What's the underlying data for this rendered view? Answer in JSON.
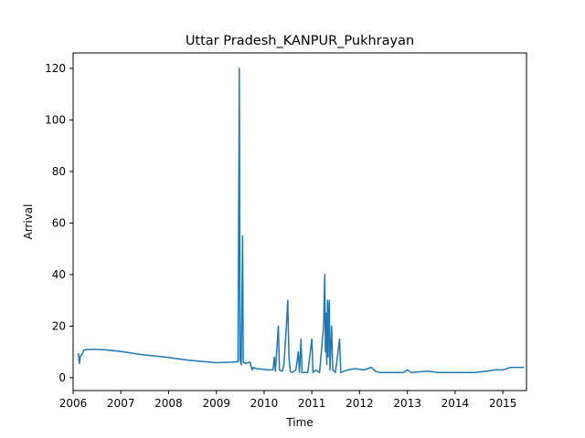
{
  "chart_data": {
    "type": "line",
    "title": "Uttar Pradesh_KANPUR_Pukhrayan",
    "xlabel": "Time",
    "ylabel": "Arrival",
    "xlim": [
      "2006-01-01",
      "2015-07-01"
    ],
    "ylim": [
      -5,
      126
    ],
    "x_ticks": [
      "2006",
      "2007",
      "2008",
      "2009",
      "2010",
      "2011",
      "2012",
      "2013",
      "2014",
      "2015"
    ],
    "y_ticks": [
      0,
      20,
      40,
      60,
      80,
      100,
      120
    ],
    "grid": false,
    "legend": "none",
    "colors": {
      "series": "#1f77b4"
    },
    "series": [
      {
        "points": [
          [
            "2006-02-10",
            9.5
          ],
          [
            "2006-02-18",
            5.5
          ],
          [
            "2006-02-26",
            8.5
          ],
          [
            "2006-03-10",
            9.0
          ],
          [
            "2006-03-25",
            10.8
          ],
          [
            "2006-06-01",
            11.0
          ],
          [
            "2006-09-01",
            10.8
          ],
          [
            "2007-01-01",
            10.2
          ],
          [
            "2007-06-01",
            9.0
          ],
          [
            "2008-01-01",
            7.8
          ],
          [
            "2008-06-01",
            6.8
          ],
          [
            "2009-01-01",
            5.8
          ],
          [
            "2009-05-01",
            6.0
          ],
          [
            "2009-06-15",
            6.2
          ],
          [
            "2009-06-25",
            120.0
          ],
          [
            "2009-07-01",
            7.0
          ],
          [
            "2009-07-10",
            5.0
          ],
          [
            "2009-07-20",
            55.0
          ],
          [
            "2009-07-25",
            6.0
          ],
          [
            "2009-08-10",
            5.5
          ],
          [
            "2009-09-15",
            6.0
          ],
          [
            "2009-10-01",
            3.0
          ],
          [
            "2009-10-10",
            4.0
          ],
          [
            "2009-11-01",
            3.5
          ],
          [
            "2010-01-01",
            3.2
          ],
          [
            "2010-02-01",
            3.0
          ],
          [
            "2010-03-10",
            3.0
          ],
          [
            "2010-03-20",
            8.0
          ],
          [
            "2010-03-28",
            2.5
          ],
          [
            "2010-04-20",
            20.0
          ],
          [
            "2010-04-28",
            3.0
          ],
          [
            "2010-05-20",
            2.5
          ],
          [
            "2010-06-01",
            5.0
          ],
          [
            "2010-06-20",
            20.0
          ],
          [
            "2010-07-01",
            30.0
          ],
          [
            "2010-07-10",
            8.0
          ],
          [
            "2010-07-20",
            2.5
          ],
          [
            "2010-08-01",
            2.0
          ],
          [
            "2010-09-01",
            3.0
          ],
          [
            "2010-09-20",
            10.0
          ],
          [
            "2010-09-28",
            2.0
          ],
          [
            "2010-10-10",
            15.0
          ],
          [
            "2010-10-18",
            2.0
          ],
          [
            "2010-12-01",
            2.0
          ],
          [
            "2011-01-01",
            15.0
          ],
          [
            "2011-01-10",
            2.0
          ],
          [
            "2011-02-01",
            3.0
          ],
          [
            "2011-03-01",
            2.0
          ],
          [
            "2011-04-01",
            20.0
          ],
          [
            "2011-04-10",
            40.0
          ],
          [
            "2011-04-15",
            10.0
          ],
          [
            "2011-04-20",
            25.0
          ],
          [
            "2011-04-25",
            5.0
          ],
          [
            "2011-05-01",
            30.0
          ],
          [
            "2011-05-06",
            8.0
          ],
          [
            "2011-05-10",
            25.0
          ],
          [
            "2011-05-15",
            30.0
          ],
          [
            "2011-05-20",
            3.0
          ],
          [
            "2011-06-01",
            20.0
          ],
          [
            "2011-06-10",
            3.0
          ],
          [
            "2011-07-01",
            2.0
          ],
          [
            "2011-08-01",
            15.0
          ],
          [
            "2011-08-10",
            2.0
          ],
          [
            "2011-10-01",
            3.0
          ],
          [
            "2011-12-01",
            3.5
          ],
          [
            "2012-02-01",
            3.0
          ],
          [
            "2012-04-01",
            4.0
          ],
          [
            "2012-05-01",
            2.5
          ],
          [
            "2012-06-01",
            2.0
          ],
          [
            "2012-09-01",
            2.0
          ],
          [
            "2012-12-01",
            2.0
          ],
          [
            "2013-01-01",
            3.0
          ],
          [
            "2013-02-01",
            2.0
          ],
          [
            "2013-06-01",
            2.5
          ],
          [
            "2013-09-01",
            2.0
          ],
          [
            "2014-01-01",
            2.0
          ],
          [
            "2014-06-01",
            2.0
          ],
          [
            "2014-09-01",
            2.5
          ],
          [
            "2014-11-01",
            3.0
          ],
          [
            "2015-01-01",
            3.0
          ],
          [
            "2015-03-01",
            4.0
          ],
          [
            "2015-05-01",
            4.0
          ],
          [
            "2015-06-10",
            4.0
          ]
        ]
      }
    ]
  }
}
